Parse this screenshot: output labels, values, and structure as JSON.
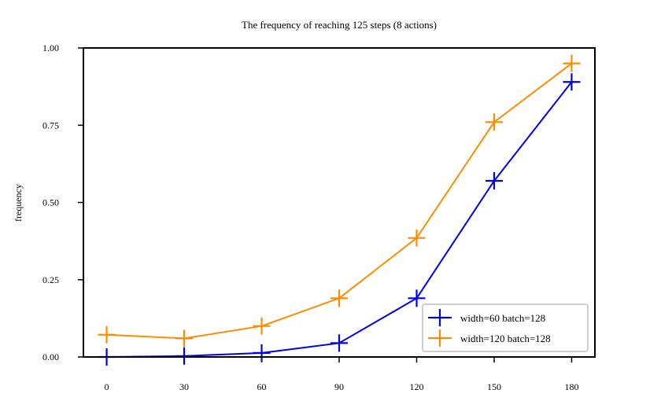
{
  "chart_data": {
    "type": "line",
    "title": "The frequency of reaching 125 steps (8 actions)",
    "xlabel": "",
    "ylabel": "frequency",
    "x": [
      0,
      30,
      60,
      90,
      120,
      150,
      180
    ],
    "x_tick_labels": [
      "0",
      "30",
      "60",
      "90",
      "120",
      "150",
      "180"
    ],
    "y_ticks": [
      0.0,
      0.25,
      0.5,
      0.75,
      1.0
    ],
    "y_tick_labels": [
      "0.00",
      "0.25",
      "0.50",
      "0.75",
      "1.00"
    ],
    "xlim": [
      -9,
      189
    ],
    "ylim": [
      0,
      1.0
    ],
    "grid": false,
    "legend_position": "lower-right",
    "marker": "plus",
    "series": [
      {
        "name": "width=60 batch=128",
        "color": "#0000e6",
        "values": [
          0.0,
          0.003,
          0.013,
          0.045,
          0.19,
          0.57,
          0.89
        ]
      },
      {
        "name": "width=120 batch=128",
        "color": "#ff8c00",
        "values": [
          0.072,
          0.06,
          0.1,
          0.19,
          0.385,
          0.76,
          0.95
        ]
      }
    ]
  }
}
